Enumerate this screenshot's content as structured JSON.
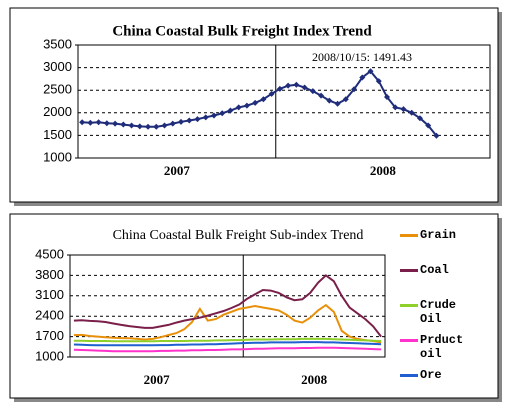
{
  "chart_data": [
    {
      "type": "line",
      "title": "China Coastal Bulk Freight Index Trend",
      "annotation": "2008/10/15:  1491.43",
      "x_labels": [
        "2007",
        "2008"
      ],
      "ylim": [
        1000,
        3500
      ],
      "yticks": [
        1000,
        1500,
        2000,
        2500,
        3000,
        3500
      ],
      "grid": true,
      "markers": true,
      "series": [
        {
          "color": "#1f2d7a",
          "values": [
            1790,
            1780,
            1790,
            1770,
            1760,
            1740,
            1720,
            1700,
            1690,
            1690,
            1720,
            1760,
            1800,
            1830,
            1860,
            1900,
            1940,
            1990,
            2050,
            2120,
            2160,
            2220,
            2300,
            2420,
            2530,
            2600,
            2620,
            2560,
            2480,
            2380,
            2270,
            2200,
            2300,
            2520,
            2780,
            2920,
            2700,
            2350,
            2120,
            2080,
            2000,
            1880,
            1720,
            1491.43,
            null,
            null,
            null,
            null,
            null,
            null
          ]
        }
      ]
    },
    {
      "type": "line",
      "title": "China Coastal Bulk Freight Sub-index Trend",
      "x_labels": [
        "2007",
        "2008"
      ],
      "ylim": [
        1000,
        4500
      ],
      "yticks": [
        1000,
        1700,
        2400,
        3100,
        3800,
        4500
      ],
      "grid": true,
      "markers": false,
      "legend": "right",
      "series": [
        {
          "name": "Grain",
          "color": "#e8900a",
          "values": [
            1750,
            1760,
            1720,
            1700,
            1680,
            1660,
            1650,
            1640,
            1620,
            1600,
            1620,
            1680,
            1750,
            1820,
            1950,
            2200,
            2650,
            2250,
            2300,
            2450,
            2550,
            2650,
            2700,
            2750,
            2700,
            2650,
            2600,
            2450,
            2250,
            2180,
            2350,
            2600,
            2780,
            2550,
            1900,
            1700,
            1620,
            1580,
            1550,
            1500
          ]
        },
        {
          "name": "Coal",
          "color": "#7a1f4a",
          "values": [
            2250,
            2260,
            2240,
            2230,
            2200,
            2150,
            2100,
            2060,
            2030,
            2000,
            2000,
            2050,
            2100,
            2180,
            2250,
            2300,
            2350,
            2420,
            2500,
            2580,
            2680,
            2800,
            3000,
            3150,
            3300,
            3280,
            3200,
            3050,
            2950,
            2980,
            3200,
            3550,
            3800,
            3600,
            3100,
            2700,
            2500,
            2300,
            2050,
            1700
          ]
        },
        {
          "name": "Crude Oil",
          "color": "#8fd12a",
          "values": [
            1560,
            1560,
            1550,
            1550,
            1550,
            1540,
            1540,
            1540,
            1540,
            1540,
            1540,
            1550,
            1550,
            1550,
            1550,
            1560,
            1560,
            1560,
            1570,
            1570,
            1580,
            1580,
            1590,
            1600,
            1600,
            1600,
            1610,
            1610,
            1610,
            1620,
            1620,
            1620,
            1620,
            1610,
            1600,
            1590,
            1580,
            1570,
            1560,
            1550
          ]
        },
        {
          "name": "Prduct oil",
          "color": "#ff33cc",
          "values": [
            1250,
            1240,
            1230,
            1220,
            1210,
            1200,
            1200,
            1200,
            1200,
            1200,
            1200,
            1210,
            1210,
            1220,
            1220,
            1230,
            1230,
            1240,
            1240,
            1250,
            1260,
            1260,
            1270,
            1280,
            1280,
            1290,
            1300,
            1300,
            1300,
            1310,
            1310,
            1320,
            1320,
            1320,
            1310,
            1300,
            1290,
            1280,
            1270,
            1260
          ]
        },
        {
          "name": "Ore",
          "color": "#1f5fd0",
          "values": [
            1430,
            1420,
            1410,
            1400,
            1400,
            1400,
            1400,
            1400,
            1400,
            1400,
            1400,
            1410,
            1410,
            1420,
            1420,
            1430,
            1430,
            1440,
            1440,
            1450,
            1460,
            1470,
            1480,
            1490,
            1490,
            1500,
            1500,
            1500,
            1500,
            1510,
            1510,
            1510,
            1500,
            1500,
            1490,
            1480,
            1470,
            1460,
            1450,
            1440
          ]
        }
      ]
    }
  ]
}
